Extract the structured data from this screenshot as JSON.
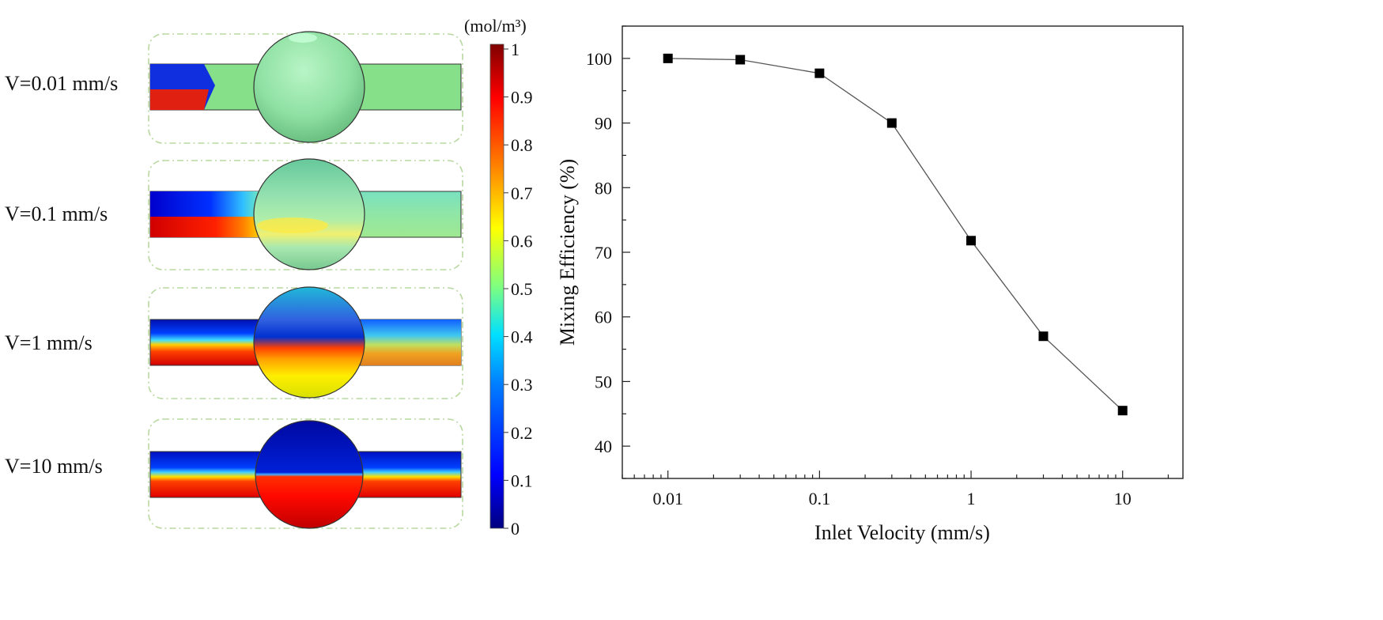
{
  "simulation": {
    "panels": [
      {
        "label": "V=0.01 mm/s"
      },
      {
        "label": "V=0.1 mm/s"
      },
      {
        "label": "V=1 mm/s"
      },
      {
        "label": "V=10 mm/s"
      }
    ]
  },
  "colorbar": {
    "unit": "(mol/m³)",
    "ticks": [
      "1",
      "0.9",
      "0.8",
      "0.7",
      "0.6",
      "0.5",
      "0.4",
      "0.3",
      "0.2",
      "0.1",
      "0"
    ],
    "range": [
      0,
      1
    ],
    "colors": [
      "#00007f",
      "#0000ff",
      "#0080ff",
      "#00e0ff",
      "#7fff7f",
      "#ffff00",
      "#ff8000",
      "#ff0000",
      "#7f0000"
    ]
  },
  "chart_data": {
    "type": "line",
    "title": "",
    "xlabel": "Inlet Velocity (mm/s)",
    "ylabel": "Mixing Efficiency (%)",
    "xscale": "log",
    "xlim": [
      0.005,
      25
    ],
    "ylim": [
      35,
      105
    ],
    "xticks": [
      {
        "value": 0.01,
        "label": "0.01"
      },
      {
        "value": 0.1,
        "label": "0.1"
      },
      {
        "value": 1,
        "label": "1"
      },
      {
        "value": 10,
        "label": "10"
      }
    ],
    "yticks": [
      {
        "value": 40,
        "label": "40"
      },
      {
        "value": 50,
        "label": "50"
      },
      {
        "value": 60,
        "label": "60"
      },
      {
        "value": 70,
        "label": "70"
      },
      {
        "value": 80,
        "label": "80"
      },
      {
        "value": 90,
        "label": "90"
      },
      {
        "value": 100,
        "label": "100"
      }
    ],
    "grid": false,
    "legend": "none",
    "series": [
      {
        "marker": "square",
        "color": "#000000",
        "points": [
          {
            "x": 0.01,
            "y": 100
          },
          {
            "x": 0.03,
            "y": 99.8
          },
          {
            "x": 0.1,
            "y": 97.7
          },
          {
            "x": 0.3,
            "y": 90
          },
          {
            "x": 1,
            "y": 71.8
          },
          {
            "x": 3,
            "y": 57
          },
          {
            "x": 10,
            "y": 45.5
          }
        ]
      }
    ]
  }
}
